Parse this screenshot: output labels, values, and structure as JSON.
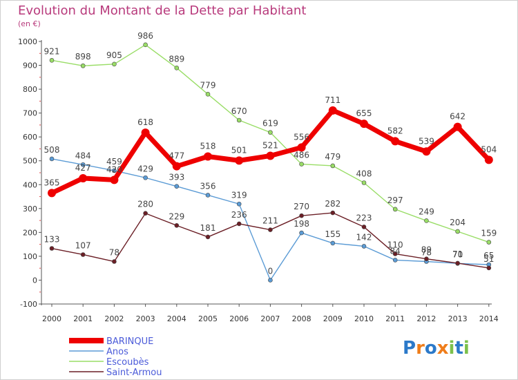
{
  "title": "Evolution du Montant de la Dette par Habitant",
  "subtitle": "(en €)",
  "logo_text": "Proxiti",
  "chart_data": {
    "type": "line",
    "x": [
      "2000",
      "2001",
      "2002",
      "2003",
      "2004",
      "2005",
      "2006",
      "2007",
      "2008",
      "2009",
      "2010",
      "2011",
      "2012",
      "2013",
      "2014"
    ],
    "ylim": [
      -100,
      1000
    ],
    "yticks": [
      -100,
      0,
      100,
      200,
      300,
      400,
      500,
      600,
      700,
      800,
      900,
      1000
    ],
    "grid": false,
    "legend_position": "bottom-left",
    "series": [
      {
        "name": "BARINQUE",
        "color": "#ee0000",
        "values": [
          365,
          427,
          420,
          618,
          477,
          518,
          501,
          521,
          556,
          711,
          655,
          582,
          539,
          642,
          504
        ]
      },
      {
        "name": "Anos",
        "color": "#5b9bd5",
        "values": [
          508,
          484,
          459,
          429,
          393,
          356,
          319,
          0,
          198,
          155,
          142,
          84,
          78,
          70,
          65
        ]
      },
      {
        "name": "Escoubès",
        "color": "#99dd66",
        "values": [
          921,
          898,
          905,
          986,
          889,
          779,
          670,
          619,
          486,
          479,
          408,
          297,
          249,
          204,
          159
        ]
      },
      {
        "name": "Saint-Armou",
        "color": "#6b1f26",
        "values": [
          133,
          107,
          78,
          280,
          229,
          181,
          236,
          211,
          270,
          282,
          223,
          110,
          89,
          71,
          51
        ]
      }
    ],
    "data_labels": [
      [
        "365",
        "427",
        "420",
        "618",
        "477",
        "518",
        "501",
        "521",
        "556",
        "711",
        "655",
        "582",
        "539",
        "642",
        "504"
      ],
      [
        "508",
        "484",
        "459",
        "429",
        "393",
        "356",
        "319",
        "0",
        "198",
        "155",
        "142",
        "84",
        "78",
        "70",
        "65"
      ],
      [
        "921",
        "898",
        "905",
        "986",
        "889",
        "779",
        "670",
        "619",
        "486",
        "479",
        "408",
        "297",
        "249",
        "204",
        "159"
      ],
      [
        "133",
        "107",
        "78",
        "280",
        "229",
        "181",
        "236",
        "211",
        "270",
        "282",
        "223",
        "110",
        "89",
        "71",
        "51"
      ]
    ]
  },
  "colors": {
    "title": "#b83a7c",
    "axis": "#555555",
    "tick_label": "#333333",
    "legend_label": "#4a5ad9",
    "logo_blue": "#2b79c9",
    "logo_orange": "#ef7d1a",
    "logo_green": "#7cc04b"
  }
}
